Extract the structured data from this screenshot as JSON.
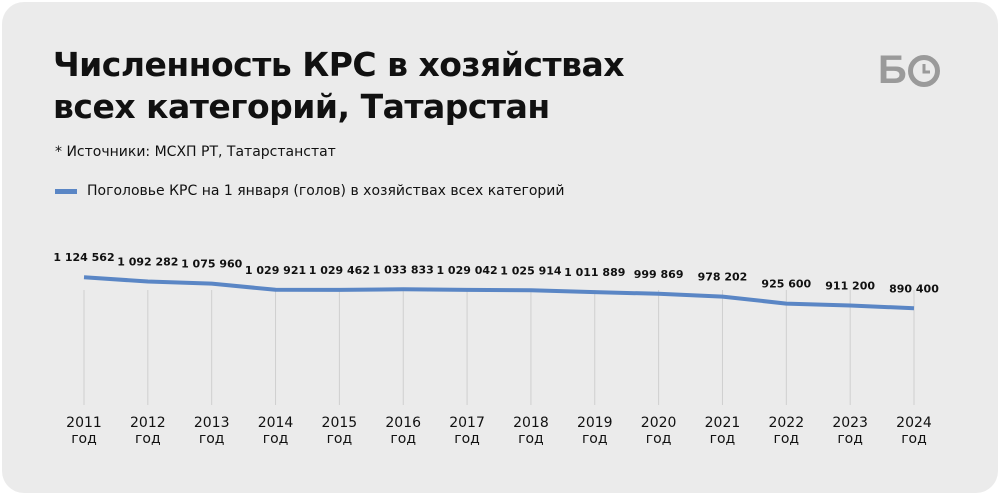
{
  "logo": "Б",
  "chart_data": {
    "type": "line",
    "title": "Численность КРС в хозяйствах всех категорий, Татарстан",
    "note": "* Источники: МСХП РТ, Татарстанстат",
    "categories": [
      "2011 год",
      "2012 год",
      "2013 год",
      "2014 год",
      "2015 год",
      "2016 год",
      "2017 год",
      "2018 год",
      "2019 год",
      "2020 год",
      "2021 год",
      "2022 год",
      "2023 год",
      "2024 год"
    ],
    "series": [
      {
        "name": "Поголовье КРС на 1 января (голов) в хозяйствах всех категорий",
        "color": "#5a86c5",
        "values": [
          1124562,
          1092282,
          1075960,
          1029921,
          1029462,
          1033833,
          1029042,
          1025914,
          1011889,
          999869,
          978202,
          925600,
          911200,
          890400
        ],
        "value_labels": [
          "1 124 562",
          "1 092 282",
          "1 075 960",
          "1 029 921",
          "1 029 462",
          "1 033 833",
          "1 029 042",
          "1 025 914",
          "1 011 889",
          "999 869",
          "978 202",
          "925 600",
          "911 200",
          "890 400"
        ]
      }
    ],
    "ylim": [
      160000,
      1300000
    ]
  }
}
